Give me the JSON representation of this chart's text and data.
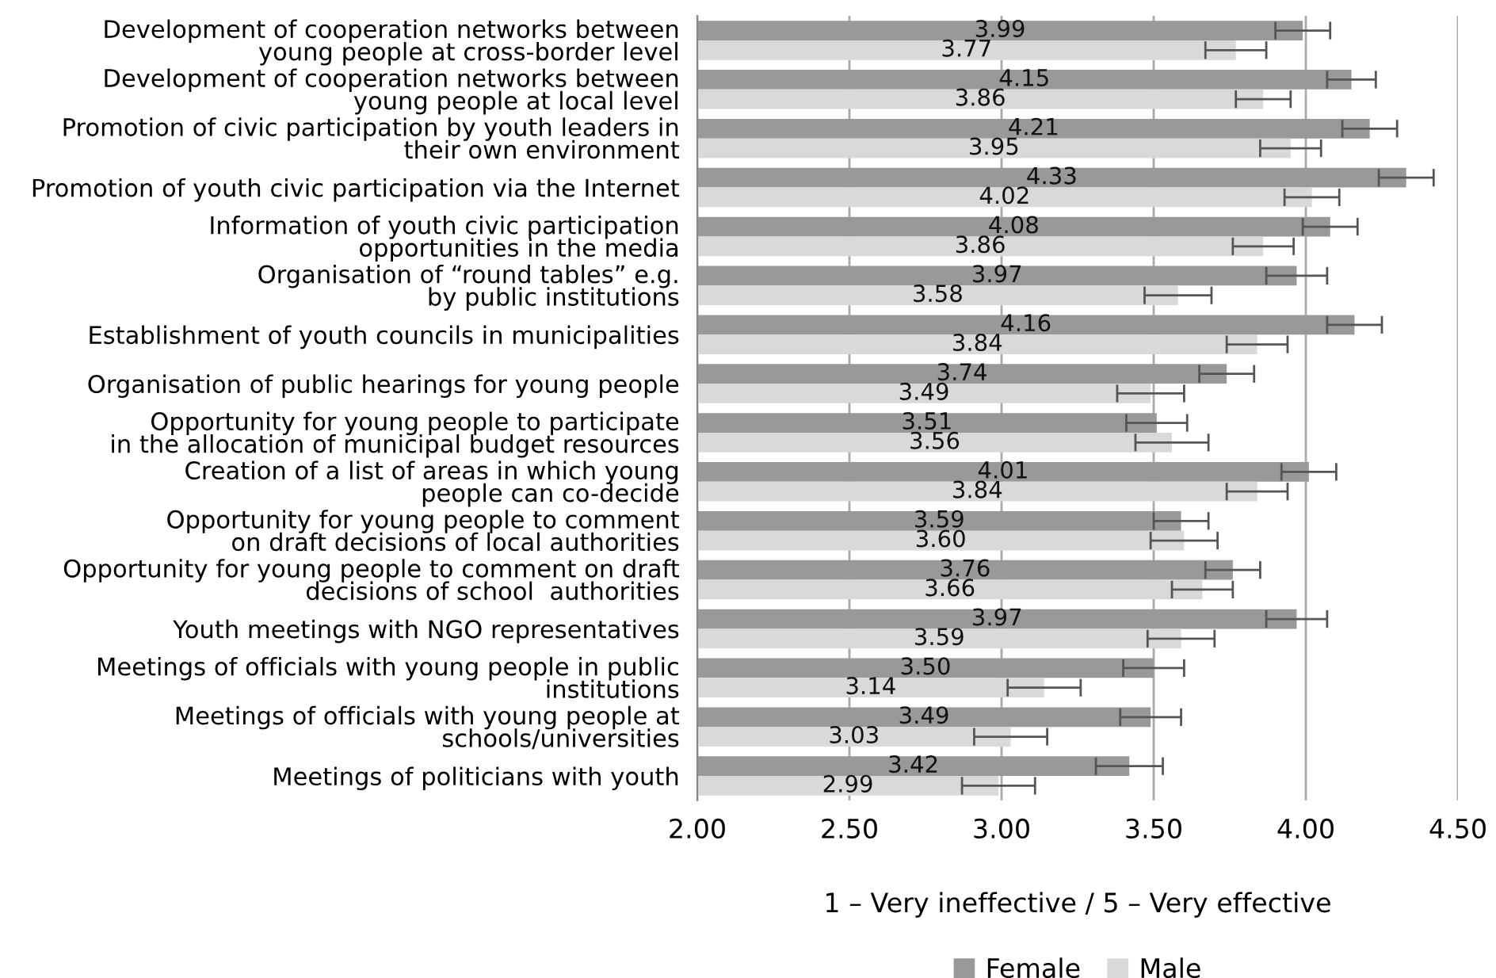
{
  "chart_data": {
    "type": "bar",
    "orientation": "horizontal",
    "categories": [
      "Development of cooperation networks between\nyoung people at cross-border level",
      "Development of cooperation networks between\nyoung people at local level",
      "Promotion of civic participation by youth leaders in\ntheir own environment",
      "Promotion of youth civic participation via the Internet",
      "Information of youth civic participation\nopportunities in the media",
      "Organisation of “round tables” e.g.\nby public institutions",
      "Establishment of youth councils in municipalities",
      "Organisation of public hearings for young people",
      "Opportunity for young people to participate\nin the allocation of municipal budget resources",
      "Creation of a list of areas in which young\npeople can co-decide",
      "Opportunity for young people to comment\non draft decisions of local authorities",
      "Opportunity for young people to comment on draft\ndecisions of school  authorities",
      "Youth meetings with NGO representatives",
      "Meetings of officials with young people in public\ninstitutions",
      "Meetings of officials with young people at\nschools/universities",
      "Meetings of politicians with youth"
    ],
    "series": [
      {
        "name": "Female",
        "color": "#999999",
        "values": [
          3.99,
          4.15,
          4.21,
          4.33,
          4.08,
          3.97,
          4.16,
          3.74,
          3.51,
          4.01,
          3.59,
          3.76,
          3.97,
          3.5,
          3.49,
          3.42
        ],
        "errors": [
          0.09,
          0.08,
          0.09,
          0.09,
          0.09,
          0.1,
          0.09,
          0.09,
          0.1,
          0.09,
          0.09,
          0.09,
          0.1,
          0.1,
          0.1,
          0.11
        ],
        "value_labels": [
          "3.99",
          "4.15",
          "4.21",
          "4.33",
          "4.08",
          "3.97",
          "4.16",
          "3.74",
          "3.51",
          "4.01",
          "3.59",
          "3.76",
          "3.97",
          "3.50",
          "3.49",
          "3.42"
        ]
      },
      {
        "name": "Male",
        "color": "#d9d9d9",
        "values": [
          3.77,
          3.86,
          3.95,
          4.02,
          3.86,
          3.58,
          3.84,
          3.49,
          3.56,
          3.84,
          3.6,
          3.66,
          3.59,
          3.14,
          3.03,
          2.99
        ],
        "errors": [
          0.1,
          0.09,
          0.1,
          0.09,
          0.1,
          0.11,
          0.1,
          0.11,
          0.12,
          0.1,
          0.11,
          0.1,
          0.11,
          0.12,
          0.12,
          0.12
        ],
        "value_labels": [
          "3.77",
          "3.86",
          "3.95",
          "4.02",
          "3.86",
          "3.58",
          "3.84",
          "3.49",
          "3.56",
          "3.84",
          "3.60",
          "3.66",
          "3.59",
          "3.14",
          "3.03",
          "2.99"
        ]
      }
    ],
    "xlim": [
      2.0,
      4.5
    ],
    "xticks": [
      {
        "value": 2.0,
        "label": "2.00"
      },
      {
        "value": 2.5,
        "label": "2.50"
      },
      {
        "value": 3.0,
        "label": "3.00"
      },
      {
        "value": 3.5,
        "label": "3.50"
      },
      {
        "value": 4.0,
        "label": "4.00"
      },
      {
        "value": 4.5,
        "label": "4.50"
      }
    ],
    "xlabel": "1 – Very ineffective / 5 – Very effective",
    "grid": "x",
    "legend": "bottom"
  }
}
